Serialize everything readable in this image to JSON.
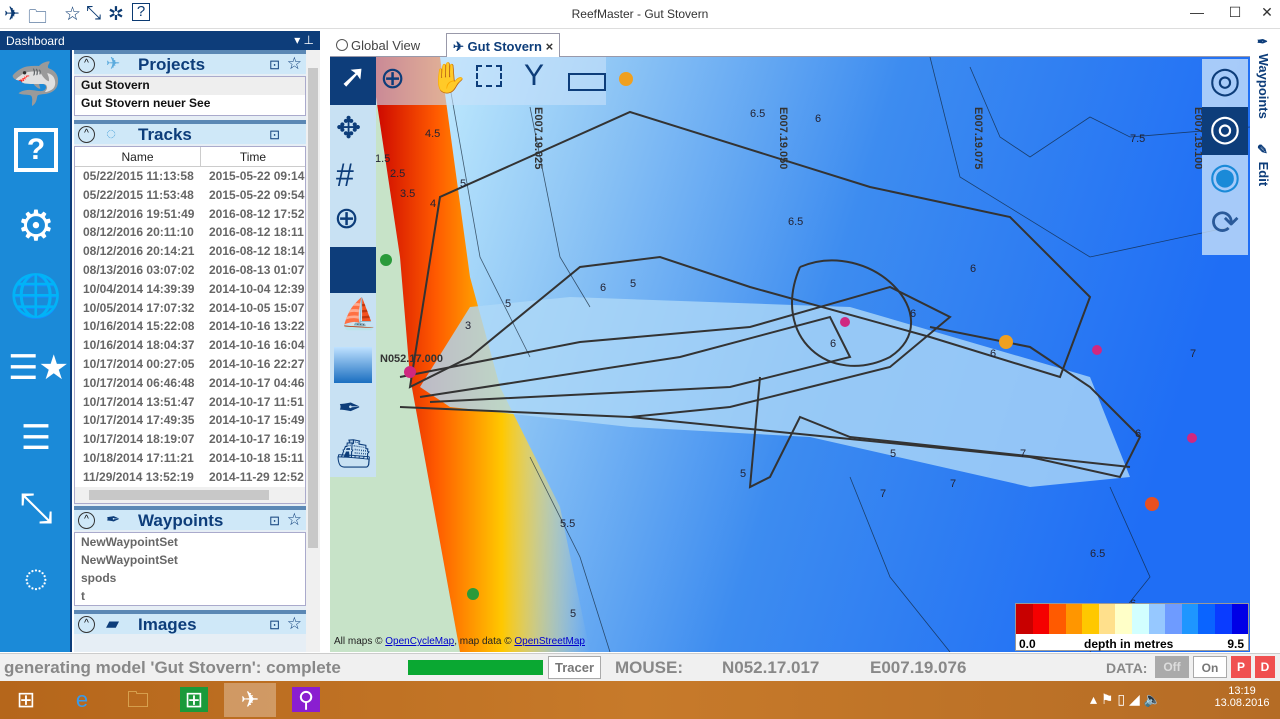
{
  "window": {
    "title": "ReefMaster - Gut Stovern",
    "min": "—",
    "max": "☐",
    "close": "✕"
  },
  "dashboard": {
    "title": "Dashboard",
    "pin": "▾ ⊥"
  },
  "projects": {
    "title": "Projects",
    "items": [
      "Gut Stovern",
      "Gut Stovern neuer See"
    ]
  },
  "tracks": {
    "title": "Tracks",
    "columns": [
      "Name",
      "Time"
    ],
    "rows": [
      [
        "05/22/2015 11:13:58",
        "2015-05-22 09:14"
      ],
      [
        "05/22/2015 11:53:48",
        "2015-05-22 09:54"
      ],
      [
        "08/12/2016 19:51:49",
        "2016-08-12 17:52"
      ],
      [
        "08/12/2016 20:11:10",
        "2016-08-12 18:11"
      ],
      [
        "08/12/2016 20:14:21",
        "2016-08-12 18:14"
      ],
      [
        "08/13/2016 03:07:02",
        "2016-08-13 01:07"
      ],
      [
        "10/04/2014 14:39:39",
        "2014-10-04 12:39"
      ],
      [
        "10/05/2014 17:07:32",
        "2014-10-05 15:07"
      ],
      [
        "10/16/2014 15:22:08",
        "2014-10-16 13:22"
      ],
      [
        "10/16/2014 18:04:37",
        "2014-10-16 16:04"
      ],
      [
        "10/17/2014 00:27:05",
        "2014-10-16 22:27"
      ],
      [
        "10/17/2014 06:46:48",
        "2014-10-17 04:46"
      ],
      [
        "10/17/2014 13:51:47",
        "2014-10-17 11:51"
      ],
      [
        "10/17/2014 17:49:35",
        "2014-10-17 15:49"
      ],
      [
        "10/17/2014 18:19:07",
        "2014-10-17 16:19"
      ],
      [
        "10/18/2014 17:11:21",
        "2014-10-18 15:11"
      ],
      [
        "11/29/2014 13:52:19",
        "2014-11-29 12:52"
      ]
    ]
  },
  "waypoints": {
    "title": "Waypoints",
    "items": [
      "NewWaypointSet",
      "NewWaypointSet",
      "spods",
      "t"
    ]
  },
  "images": {
    "title": "Images"
  },
  "tabs": [
    {
      "label": "Global View"
    },
    {
      "label": "Gut Stovern",
      "close": "×"
    }
  ],
  "right_tabs": [
    "Waypoints",
    "Edit"
  ],
  "map": {
    "grid_labels": [
      "E007.19.025",
      "E007.19.050",
      "E007.19.075",
      "E007.19.100",
      "N052.17.000"
    ],
    "depth_labels": [
      "4.5",
      "1.5",
      "2.5",
      "3.5",
      "4",
      "5",
      "6.5",
      "6",
      "6",
      "7.5",
      "6.5",
      "5",
      "6",
      "3",
      "5",
      "6",
      "5",
      "5.5",
      "5",
      "6",
      "7",
      "7",
      "6.5",
      "5",
      "6",
      "6",
      "7",
      "7",
      "6"
    ],
    "attribution": {
      "prefix": "All maps © ",
      "osm_cycle": "OpenCycleMap",
      "mid": ", map data © ",
      "osm": "OpenStreetMap"
    },
    "legend": {
      "min": "0.0",
      "label": "depth in metres",
      "max": "9.5",
      "colors": [
        "#c80000",
        "#f50000",
        "#ff5a00",
        "#ff9600",
        "#ffc800",
        "#ffe08c",
        "#ffffc8",
        "#d2ffff",
        "#96c8ff",
        "#6e9bff",
        "#1e96ff",
        "#0a64ff",
        "#0a3cff",
        "#0000e6"
      ]
    }
  },
  "status": {
    "message": "generating model 'Gut Stovern': complete",
    "progress": 100,
    "tracer": "Tracer",
    "mouse_label": "MOUSE:",
    "lat": "N052.17.017",
    "lon": "E007.19.076",
    "data_label": "DATA:",
    "off": "Off",
    "on": "On",
    "p": "P",
    "d": "D"
  },
  "taskbar": {
    "time": "13:19",
    "date": "13.08.2016"
  },
  "colors": {
    "accent": "#0d3d7a",
    "strip": "#1b8ad8",
    "progress": "#0aa832"
  }
}
